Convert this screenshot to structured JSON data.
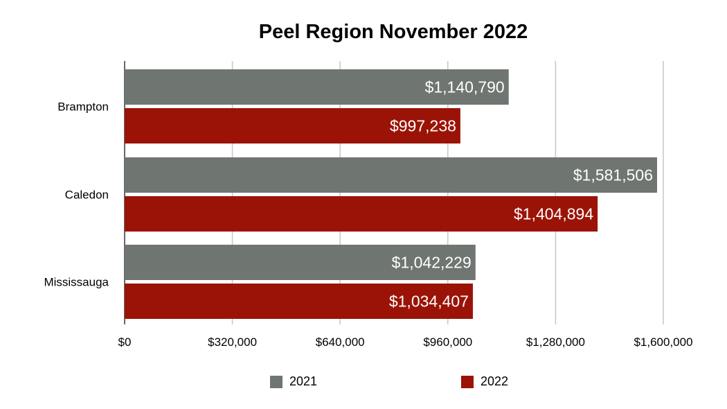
{
  "chart_data": {
    "type": "bar",
    "orientation": "horizontal",
    "title": "Peel Region November 2022",
    "categories": [
      "Brampton",
      "Caledon",
      "Mississauga"
    ],
    "series": [
      {
        "name": "2021",
        "values": [
          1140790,
          1581506,
          1042229
        ],
        "labels": [
          "$1,140,790",
          "$1,581,506",
          "$1,042,229"
        ],
        "color": "#6f7571"
      },
      {
        "name": "2022",
        "values": [
          997238,
          1404894,
          1034407
        ],
        "labels": [
          "$997,238",
          "$1,404,894",
          "$1,034,407"
        ],
        "color": "#9b1307"
      }
    ],
    "x_ticks": [
      0,
      320000,
      640000,
      960000,
      1280000,
      1600000
    ],
    "x_tick_labels": [
      "$0",
      "$320,000",
      "$640,000",
      "$960,000",
      "$1,280,000",
      "$1,600,000"
    ],
    "xlim": [
      0,
      1600000
    ],
    "grid": true,
    "legend_position": "bottom"
  }
}
